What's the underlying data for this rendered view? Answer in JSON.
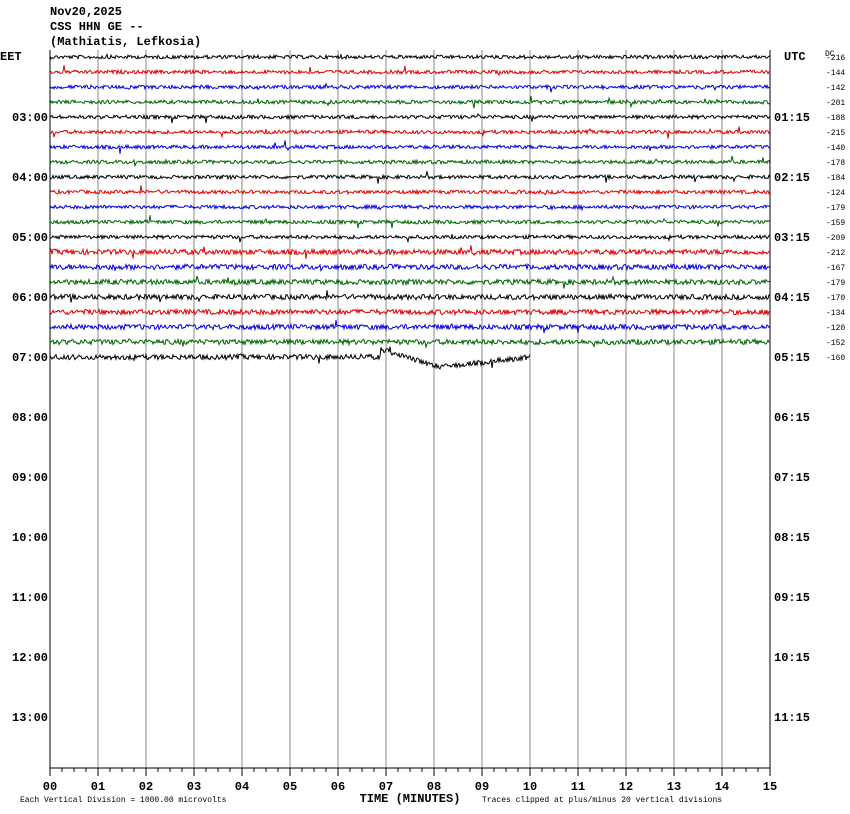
{
  "header": {
    "date": "Nov20,2025",
    "station": "CSS HHN GE --",
    "location": "(Mathiatis, Lefkosia)"
  },
  "left_zone": "EET",
  "right_zone": "UTC",
  "dc_label": "DC",
  "left_hours": [
    "03:00",
    "04:00",
    "05:00",
    "06:00",
    "07:00",
    "08:00",
    "09:00",
    "10:00",
    "11:00",
    "12:00",
    "13:00"
  ],
  "right_hours": [
    "01:15",
    "02:15",
    "03:15",
    "04:15",
    "05:15",
    "06:15",
    "07:15",
    "08:15",
    "09:15",
    "10:15",
    "11:15"
  ],
  "dc_offsets": [
    -216,
    -144,
    -142,
    -201,
    -188,
    -215,
    -140,
    -178,
    -184,
    -124,
    -179,
    -159,
    -209,
    -212,
    -167,
    -179,
    -170,
    -134,
    -120,
    -152,
    -160
  ],
  "trace_colors": [
    "#000000",
    "#e00000",
    "#0000e0",
    "#006400"
  ],
  "x_axis": {
    "label": "TIME (MINUTES)",
    "ticks": [
      "00",
      "01",
      "02",
      "03",
      "04",
      "05",
      "06",
      "07",
      "08",
      "09",
      "10",
      "11",
      "12",
      "13",
      "14",
      "15"
    ]
  },
  "footer": {
    "scale": "Each Vertical Division = 1000.00 microvolts",
    "clip": "Traces clipped at plus/minus 20 vertical divisions"
  }
}
